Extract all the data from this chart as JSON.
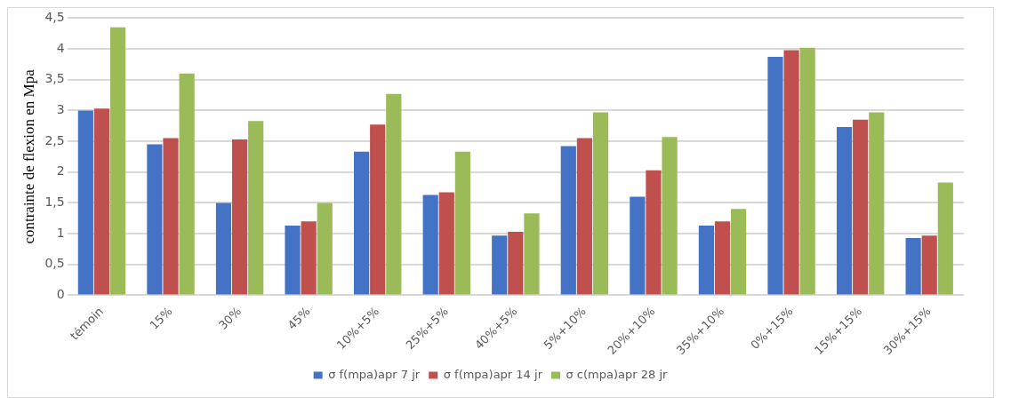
{
  "chart_data": {
    "type": "bar",
    "ylabel": "contrainte de flexion en Mpa",
    "categories": [
      "témoin",
      "15%",
      "30%",
      "45%",
      "10%+5%",
      "25%+5%",
      "40%+5%",
      "5%+10%",
      "20%+10%",
      "35%+10%",
      "0%+15%",
      "15%+15%",
      "30%+15%"
    ],
    "series": [
      {
        "name": "σ f(mpa)apr 7 jr",
        "color": "#4472c4",
        "values": [
          3.0,
          2.45,
          1.5,
          1.13,
          2.33,
          1.63,
          0.97,
          2.42,
          1.6,
          1.13,
          3.87,
          2.73,
          0.93
        ]
      },
      {
        "name": "σ f(mpa)apr 14 jr",
        "color": "#c0504d",
        "values": [
          3.03,
          2.55,
          2.53,
          1.2,
          2.77,
          1.67,
          1.03,
          2.55,
          2.03,
          1.2,
          3.98,
          2.85,
          0.97
        ]
      },
      {
        "name": "σ c(mpa)apr 28 jr",
        "color": "#9bbb59",
        "values": [
          4.35,
          3.6,
          2.83,
          1.5,
          3.27,
          2.33,
          1.33,
          2.97,
          2.57,
          1.4,
          4.02,
          2.97,
          1.83
        ]
      }
    ],
    "ylim": [
      0,
      4.5
    ],
    "yticks": [
      0,
      {
        "value": 0.5,
        "label": "0,5"
      },
      1,
      {
        "value": 1.5,
        "label": "1,5"
      },
      2,
      {
        "value": 2.5,
        "label": "2,5"
      },
      3,
      {
        "value": 3.5,
        "label": "3,5"
      },
      4,
      {
        "value": 4.5,
        "label": "4,5"
      }
    ],
    "grid": "y",
    "legend": "bottom"
  }
}
